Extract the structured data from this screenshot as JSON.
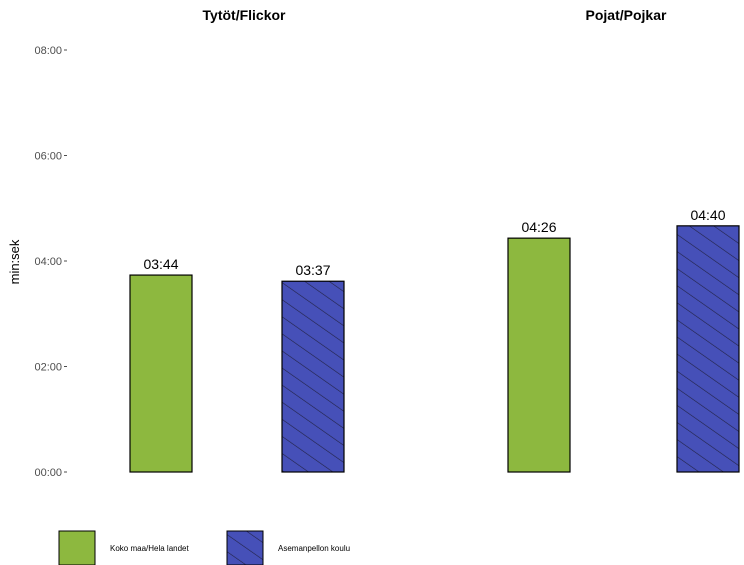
{
  "chart_data": {
    "type": "bar",
    "ylabel": "min:sek",
    "ylim_seconds": [
      0,
      480
    ],
    "y_ticks": [
      {
        "seconds": 0,
        "label": "00:00"
      },
      {
        "seconds": 120,
        "label": "02:00"
      },
      {
        "seconds": 240,
        "label": "04:00"
      },
      {
        "seconds": 360,
        "label": "06:00"
      },
      {
        "seconds": 480,
        "label": "08:00"
      }
    ],
    "facets": [
      {
        "title": "Tytöt/Flickor",
        "bars": [
          {
            "series": "Koko maa/Hela landet",
            "value_seconds": 224,
            "label": "03:44"
          },
          {
            "series": "Asemanpellon koulu",
            "value_seconds": 217,
            "label": "03:37"
          }
        ]
      },
      {
        "title": "Pojat/Pojkar",
        "bars": [
          {
            "series": "Koko maa/Hela landet",
            "value_seconds": 266,
            "label": "04:26"
          },
          {
            "series": "Asemanpellon koulu",
            "value_seconds": 280,
            "label": "04:40"
          }
        ]
      }
    ],
    "series": [
      {
        "name": "Koko maa/Hela landet",
        "color": "#8db83f",
        "pattern": "solid"
      },
      {
        "name": "Asemanpellon koulu",
        "color": "#4650b8",
        "pattern": "diagonal-hatch"
      }
    ],
    "grid": false,
    "legend_position": "bottom-left"
  }
}
